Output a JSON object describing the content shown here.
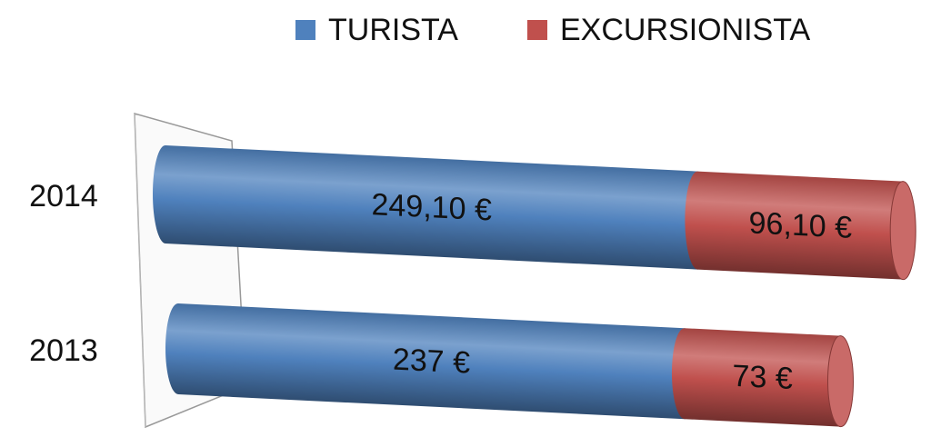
{
  "chart_data": {
    "type": "stacked-bar-horizontal",
    "categories": [
      "2014",
      "2013"
    ],
    "series": [
      {
        "name": "TURISTA",
        "color": "#4f81bd",
        "values": [
          249.1,
          237
        ],
        "value_labels": [
          "249,10 €",
          "237 €"
        ]
      },
      {
        "name": "EXCURSIONISTA",
        "color": "#c0504d",
        "values": [
          96.1,
          73
        ],
        "value_labels": [
          "96,10 €",
          "73 €"
        ]
      }
    ],
    "legend": "top"
  }
}
